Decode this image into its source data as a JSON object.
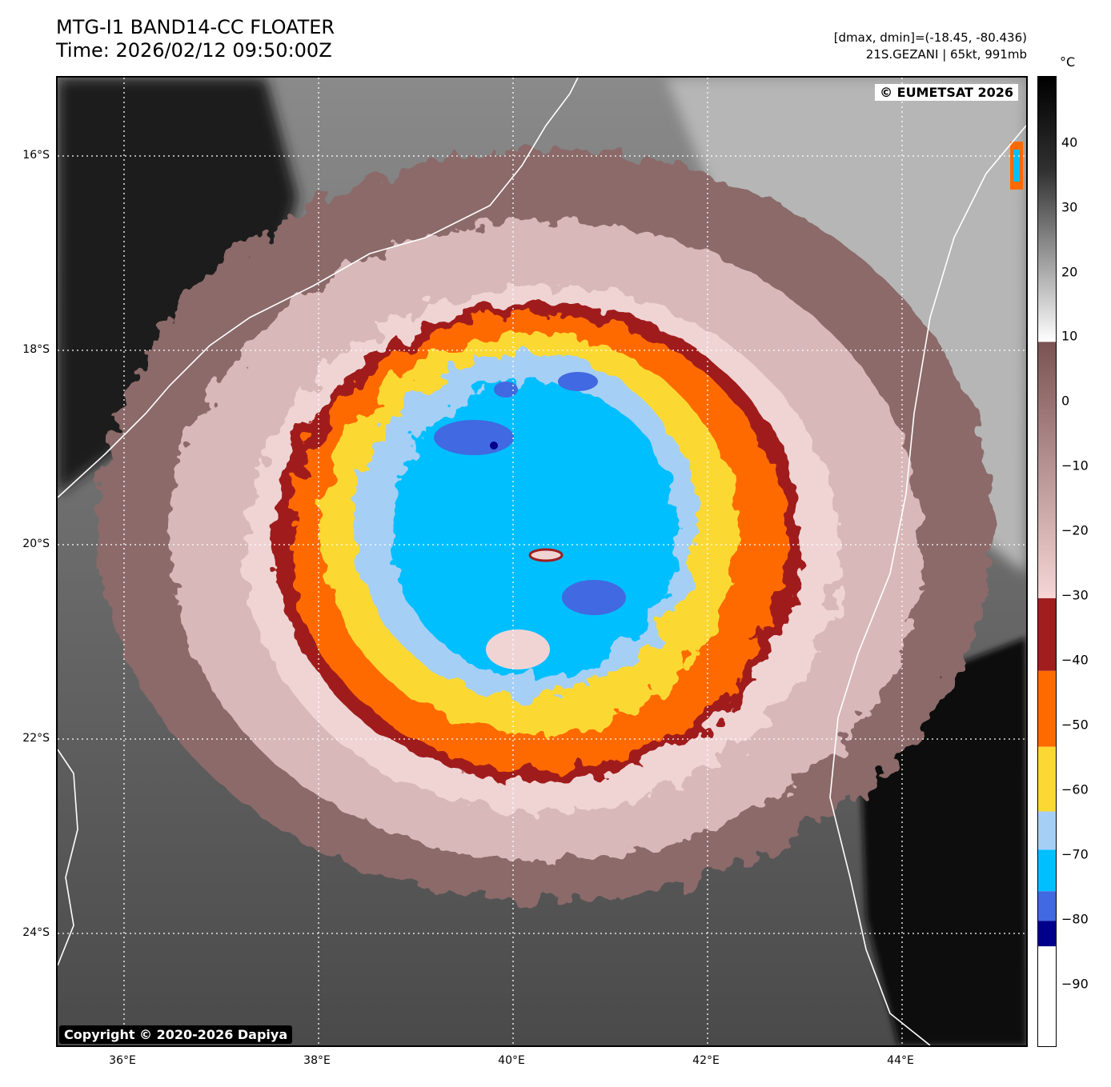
{
  "header": {
    "title_line1": "MTG-I1 BAND14-CC FLOATER",
    "title_line2": "Time: 2026/02/12 09:50:00Z",
    "meta_line1": "[dmax, dmin]=(-18.45, -80.436)",
    "meta_line2": "21S.GEZANI | 65kt, 991mb"
  },
  "map": {
    "eumetsat_badge": "© EUMETSAT 2026",
    "copyright_badge": "Copyright © 2020-2026 Dapiya",
    "lat_labels": [
      "16°S",
      "18°S",
      "20°S",
      "22°S",
      "24°S"
    ],
    "lon_labels": [
      "36°E",
      "38°E",
      "40°E",
      "42°E",
      "44°E"
    ],
    "lat_range": [
      -25,
      -15.2
    ],
    "lon_range": [
      35.3,
      45.3
    ]
  },
  "colorbar": {
    "unit": "°C",
    "ticks": [
      "40",
      "30",
      "20",
      "10",
      "0",
      "−10",
      "−20",
      "−30",
      "−40",
      "−50",
      "−60",
      "−70",
      "−80",
      "−90"
    ],
    "range": [
      -100,
      50
    ],
    "colors": {
      "black": "#000000",
      "gray": "#808080",
      "white": "#ffffff",
      "brown": "#7a5252",
      "pink": "#f6d6d6",
      "dark_red": "#a01e1e",
      "orange": "#ff6a00",
      "yellow": "#fcd932",
      "light_blue": "#a6cff5",
      "cyan": "#00bfff",
      "royal_blue": "#4169e1",
      "navy": "#00008b"
    }
  }
}
